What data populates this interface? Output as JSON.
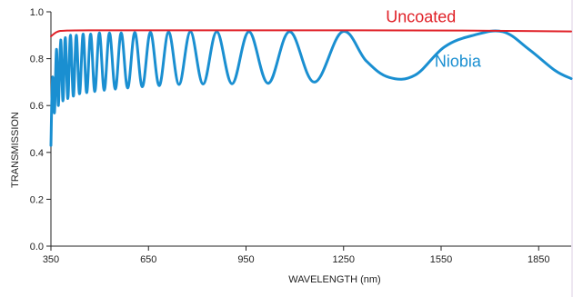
{
  "colors": {
    "background": "#ede6f1",
    "plot_area": "#ffffff",
    "uncoated": "#e02027",
    "niobia": "#1a8fd1",
    "axis": "#222222"
  },
  "chart_data": {
    "type": "line",
    "title": "",
    "xlabel": "WAVELENGTH (nm)",
    "ylabel": "TRANSMISSION",
    "xlim": [
      350,
      1950
    ],
    "ylim": [
      0.0,
      1.0
    ],
    "x_ticks": [
      350,
      650,
      950,
      1250,
      1550,
      1850
    ],
    "x_tick_labels": [
      "350",
      "650",
      "950",
      "1250",
      "1550",
      "1850"
    ],
    "y_ticks": [
      0.0,
      0.2,
      0.4,
      0.6,
      0.8,
      1.0
    ],
    "y_tick_labels": [
      "0.0",
      "0.2",
      "0.4",
      "0.6",
      "0.8",
      "1.0"
    ],
    "grid": false,
    "series": [
      {
        "name": "Uncoated",
        "color": "#e02027",
        "x": [
          350,
          370,
          400,
          500,
          700,
          1000,
          1300,
          1600,
          1800,
          1950
        ],
        "y": [
          0.895,
          0.915,
          0.92,
          0.921,
          0.921,
          0.921,
          0.921,
          0.92,
          0.918,
          0.916
        ]
      },
      {
        "name": "Niobia",
        "color": "#1a8fd1",
        "x": [
          350,
          355,
          361,
          367,
          373,
          380,
          387,
          394,
          402,
          410,
          419,
          428,
          438,
          449,
          460,
          472,
          485,
          499,
          514,
          530,
          548,
          566,
          586,
          608,
          631,
          656,
          683,
          712,
          744,
          779,
          818,
          860,
          907,
          959,
          1018,
          1084,
          1160,
          1246,
          1320,
          1390,
          1470,
          1560,
          1650,
          1740,
          1820,
          1900,
          1950
        ],
        "y": [
          0.43,
          0.72,
          0.57,
          0.84,
          0.6,
          0.88,
          0.62,
          0.89,
          0.63,
          0.9,
          0.64,
          0.9,
          0.65,
          0.905,
          0.655,
          0.905,
          0.66,
          0.91,
          0.665,
          0.91,
          0.67,
          0.91,
          0.675,
          0.912,
          0.68,
          0.913,
          0.685,
          0.914,
          0.69,
          0.915,
          0.692,
          0.915,
          0.693,
          0.915,
          0.695,
          0.915,
          0.7,
          0.915,
          0.79,
          0.72,
          0.73,
          0.85,
          0.9,
          0.915,
          0.84,
          0.75,
          0.715
        ]
      }
    ],
    "annotations": [
      {
        "text": "Uncoated",
        "series": "Uncoated",
        "x": 1380,
        "y": 0.955
      },
      {
        "text": "Niobia",
        "series": "Niobia",
        "x": 1530,
        "y": 0.765
      }
    ]
  }
}
